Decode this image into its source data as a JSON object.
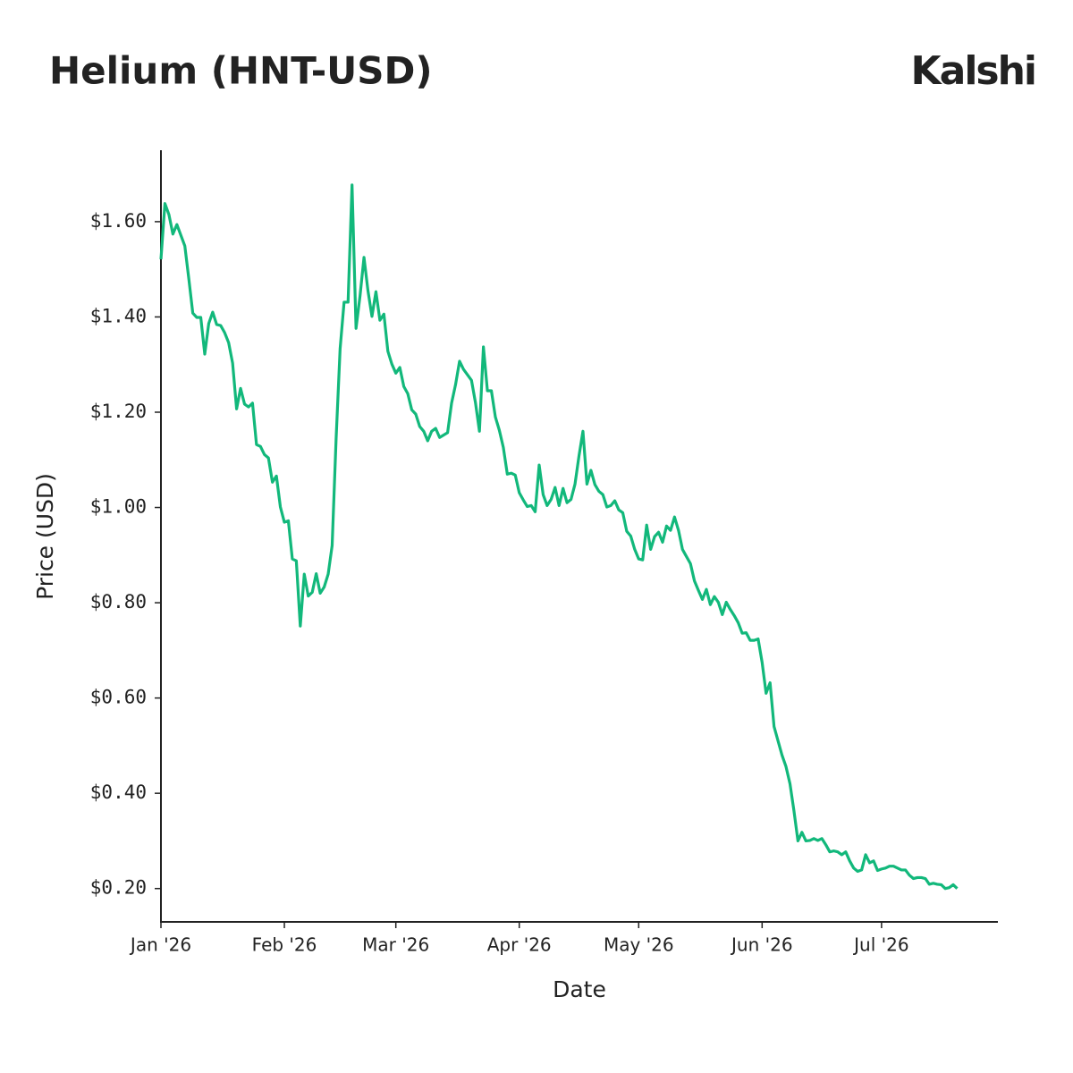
{
  "chart_data": {
    "type": "line",
    "title": "Helium (HNT-USD)",
    "brand": "Kalshi",
    "x_label": "Date",
    "y_label": "Price (USD)",
    "color": "#12b87b",
    "x": [
      0,
      1,
      2,
      3,
      4,
      6,
      7,
      8,
      9,
      10,
      11,
      12,
      13,
      14,
      15,
      16,
      17,
      18,
      19,
      20,
      21,
      22,
      23,
      24,
      25,
      26,
      27,
      28,
      29,
      30,
      31,
      32,
      33,
      34,
      35,
      36,
      37,
      38,
      39,
      40,
      41,
      42,
      43,
      44,
      45,
      46,
      47,
      48,
      49,
      50,
      51,
      52,
      53,
      54,
      55,
      56,
      57,
      58,
      59,
      60,
      61,
      62,
      63,
      64,
      65,
      66,
      67,
      68,
      69,
      70,
      72,
      73,
      74,
      75,
      76,
      78,
      79,
      80,
      81,
      82,
      83,
      84,
      85,
      86,
      87,
      88,
      89,
      90,
      91,
      92,
      93,
      94,
      95,
      96,
      97,
      98,
      99,
      100,
      101,
      102,
      103,
      104,
      105,
      106,
      107,
      108,
      109,
      110,
      111,
      112,
      113,
      114,
      115,
      116,
      117,
      118,
      119,
      120,
      121,
      122,
      123,
      124,
      125,
      126,
      127,
      128,
      129,
      130,
      131,
      132,
      133,
      134,
      135,
      136,
      137,
      138,
      139,
      140,
      141,
      142,
      143,
      144,
      145,
      146,
      147,
      148,
      149,
      150,
      151,
      152,
      153,
      154,
      155,
      156,
      157,
      158,
      159,
      160,
      161,
      162,
      163,
      164,
      165,
      166,
      167,
      168,
      169,
      170,
      171,
      172,
      173,
      174,
      175,
      176,
      177,
      178,
      179,
      180,
      181,
      182,
      183,
      184,
      185,
      186,
      187,
      188,
      189,
      190,
      191,
      192,
      193,
      194,
      195,
      196,
      197,
      198,
      199,
      200
    ],
    "values": [
      1.521,
      1.638,
      1.615,
      1.574,
      1.594,
      1.549,
      1.48,
      1.408,
      1.399,
      1.399,
      1.322,
      1.386,
      1.41,
      1.384,
      1.382,
      1.367,
      1.346,
      1.303,
      1.207,
      1.25,
      1.217,
      1.211,
      1.219,
      1.132,
      1.128,
      1.111,
      1.104,
      1.053,
      1.066,
      1.001,
      0.969,
      0.972,
      0.892,
      0.888,
      0.751,
      0.86,
      0.814,
      0.822,
      0.861,
      0.82,
      0.833,
      0.86,
      0.92,
      1.145,
      1.333,
      1.431,
      1.431,
      1.677,
      1.376,
      1.444,
      1.525,
      1.455,
      1.401,
      1.453,
      1.393,
      1.406,
      1.328,
      1.301,
      1.282,
      1.294,
      1.254,
      1.239,
      1.205,
      1.196,
      1.17,
      1.16,
      1.14,
      1.16,
      1.166,
      1.147,
      1.157,
      1.219,
      1.258,
      1.307,
      1.29,
      1.267,
      1.22,
      1.16,
      1.337,
      1.245,
      1.245,
      1.19,
      1.162,
      1.126,
      1.07,
      1.072,
      1.068,
      1.031,
      1.016,
      1.002,
      1.004,
      0.991,
      1.089,
      1.027,
      1.004,
      1.017,
      1.042,
      1.004,
      1.04,
      1.01,
      1.017,
      1.049,
      1.108,
      1.16,
      1.049,
      1.078,
      1.048,
      1.034,
      1.027,
      1.001,
      1.004,
      1.014,
      0.995,
      0.989,
      0.95,
      0.94,
      0.912,
      0.892,
      0.89,
      0.963,
      0.912,
      0.939,
      0.948,
      0.927,
      0.961,
      0.952,
      0.98,
      0.952,
      0.912,
      0.897,
      0.882,
      0.846,
      0.826,
      0.807,
      0.828,
      0.796,
      0.813,
      0.801,
      0.775,
      0.801,
      0.786,
      0.773,
      0.758,
      0.736,
      0.737,
      0.721,
      0.721,
      0.724,
      0.675,
      0.61,
      0.632,
      0.54,
      0.51,
      0.48,
      0.456,
      0.42,
      0.363,
      0.3,
      0.318,
      0.3,
      0.301,
      0.305,
      0.301,
      0.305,
      0.292,
      0.277,
      0.279,
      0.277,
      0.271,
      0.277,
      0.258,
      0.243,
      0.236,
      0.239,
      0.271,
      0.254,
      0.258,
      0.238,
      0.241,
      0.243,
      0.247,
      0.247,
      0.243,
      0.239,
      0.239,
      0.228,
      0.221,
      0.223,
      0.223,
      0.221,
      0.209,
      0.211,
      0.209,
      0.208,
      0.2,
      0.202,
      0.208,
      0.2
    ],
    "xlim": [
      0,
      210
    ],
    "xticks": [
      {
        "value": 0,
        "label": "Jan '26"
      },
      {
        "value": 31,
        "label": "Feb '26"
      },
      {
        "value": 59,
        "label": "Mar '26"
      },
      {
        "value": 90,
        "label": "Apr '26"
      },
      {
        "value": 120,
        "label": "May '26"
      },
      {
        "value": 151,
        "label": "Jun '26"
      },
      {
        "value": 181,
        "label": "Jul '26"
      }
    ],
    "ylim": [
      0.13,
      1.75
    ],
    "yticks": [
      {
        "value": 0.2,
        "label": "$0.20"
      },
      {
        "value": 0.4,
        "label": "$0.40"
      },
      {
        "value": 0.6,
        "label": "$0.60"
      },
      {
        "value": 0.8,
        "label": "$0.80"
      },
      {
        "value": 1.0,
        "label": "$1.00"
      },
      {
        "value": 1.2,
        "label": "$1.20"
      },
      {
        "value": 1.4,
        "label": "$1.40"
      },
      {
        "value": 1.6,
        "label": "$1.60"
      }
    ]
  }
}
